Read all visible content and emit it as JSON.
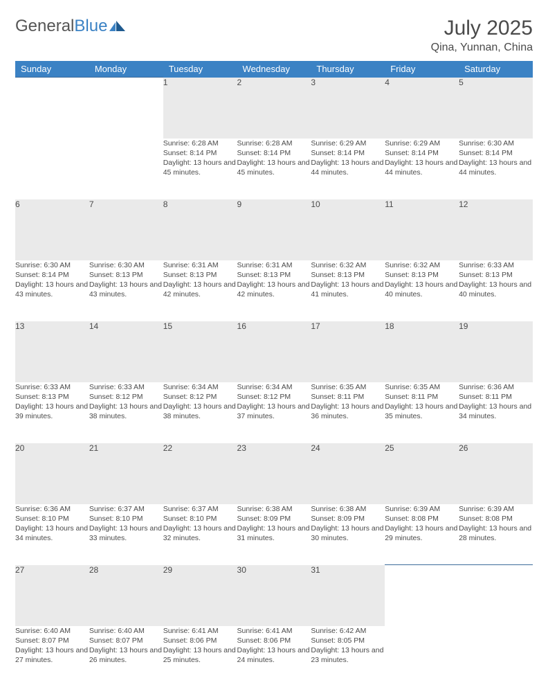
{
  "logo": {
    "text1": "General",
    "text2": "Blue"
  },
  "title": "July 2025",
  "location": "Qina, Yunnan, China",
  "colors": {
    "header_bg": "#3b82c4",
    "header_text": "#ffffff",
    "daynum_bg": "#eaeaea",
    "border": "#3b6a9a",
    "text": "#4a4a4a",
    "logo_gray": "#555555",
    "logo_blue": "#3b82c4"
  },
  "weekdays": [
    "Sunday",
    "Monday",
    "Tuesday",
    "Wednesday",
    "Thursday",
    "Friday",
    "Saturday"
  ],
  "weeks": [
    [
      null,
      null,
      {
        "n": "1",
        "sr": "6:28 AM",
        "ss": "8:14 PM",
        "dl": "13 hours and 45 minutes."
      },
      {
        "n": "2",
        "sr": "6:28 AM",
        "ss": "8:14 PM",
        "dl": "13 hours and 45 minutes."
      },
      {
        "n": "3",
        "sr": "6:29 AM",
        "ss": "8:14 PM",
        "dl": "13 hours and 44 minutes."
      },
      {
        "n": "4",
        "sr": "6:29 AM",
        "ss": "8:14 PM",
        "dl": "13 hours and 44 minutes."
      },
      {
        "n": "5",
        "sr": "6:30 AM",
        "ss": "8:14 PM",
        "dl": "13 hours and 44 minutes."
      }
    ],
    [
      {
        "n": "6",
        "sr": "6:30 AM",
        "ss": "8:14 PM",
        "dl": "13 hours and 43 minutes."
      },
      {
        "n": "7",
        "sr": "6:30 AM",
        "ss": "8:13 PM",
        "dl": "13 hours and 43 minutes."
      },
      {
        "n": "8",
        "sr": "6:31 AM",
        "ss": "8:13 PM",
        "dl": "13 hours and 42 minutes."
      },
      {
        "n": "9",
        "sr": "6:31 AM",
        "ss": "8:13 PM",
        "dl": "13 hours and 42 minutes."
      },
      {
        "n": "10",
        "sr": "6:32 AM",
        "ss": "8:13 PM",
        "dl": "13 hours and 41 minutes."
      },
      {
        "n": "11",
        "sr": "6:32 AM",
        "ss": "8:13 PM",
        "dl": "13 hours and 40 minutes."
      },
      {
        "n": "12",
        "sr": "6:33 AM",
        "ss": "8:13 PM",
        "dl": "13 hours and 40 minutes."
      }
    ],
    [
      {
        "n": "13",
        "sr": "6:33 AM",
        "ss": "8:13 PM",
        "dl": "13 hours and 39 minutes."
      },
      {
        "n": "14",
        "sr": "6:33 AM",
        "ss": "8:12 PM",
        "dl": "13 hours and 38 minutes."
      },
      {
        "n": "15",
        "sr": "6:34 AM",
        "ss": "8:12 PM",
        "dl": "13 hours and 38 minutes."
      },
      {
        "n": "16",
        "sr": "6:34 AM",
        "ss": "8:12 PM",
        "dl": "13 hours and 37 minutes."
      },
      {
        "n": "17",
        "sr": "6:35 AM",
        "ss": "8:11 PM",
        "dl": "13 hours and 36 minutes."
      },
      {
        "n": "18",
        "sr": "6:35 AM",
        "ss": "8:11 PM",
        "dl": "13 hours and 35 minutes."
      },
      {
        "n": "19",
        "sr": "6:36 AM",
        "ss": "8:11 PM",
        "dl": "13 hours and 34 minutes."
      }
    ],
    [
      {
        "n": "20",
        "sr": "6:36 AM",
        "ss": "8:10 PM",
        "dl": "13 hours and 34 minutes."
      },
      {
        "n": "21",
        "sr": "6:37 AM",
        "ss": "8:10 PM",
        "dl": "13 hours and 33 minutes."
      },
      {
        "n": "22",
        "sr": "6:37 AM",
        "ss": "8:10 PM",
        "dl": "13 hours and 32 minutes."
      },
      {
        "n": "23",
        "sr": "6:38 AM",
        "ss": "8:09 PM",
        "dl": "13 hours and 31 minutes."
      },
      {
        "n": "24",
        "sr": "6:38 AM",
        "ss": "8:09 PM",
        "dl": "13 hours and 30 minutes."
      },
      {
        "n": "25",
        "sr": "6:39 AM",
        "ss": "8:08 PM",
        "dl": "13 hours and 29 minutes."
      },
      {
        "n": "26",
        "sr": "6:39 AM",
        "ss": "8:08 PM",
        "dl": "13 hours and 28 minutes."
      }
    ],
    [
      {
        "n": "27",
        "sr": "6:40 AM",
        "ss": "8:07 PM",
        "dl": "13 hours and 27 minutes."
      },
      {
        "n": "28",
        "sr": "6:40 AM",
        "ss": "8:07 PM",
        "dl": "13 hours and 26 minutes."
      },
      {
        "n": "29",
        "sr": "6:41 AM",
        "ss": "8:06 PM",
        "dl": "13 hours and 25 minutes."
      },
      {
        "n": "30",
        "sr": "6:41 AM",
        "ss": "8:06 PM",
        "dl": "13 hours and 24 minutes."
      },
      {
        "n": "31",
        "sr": "6:42 AM",
        "ss": "8:05 PM",
        "dl": "13 hours and 23 minutes."
      },
      null,
      null
    ]
  ],
  "labels": {
    "sunrise": "Sunrise:",
    "sunset": "Sunset:",
    "daylight": "Daylight:"
  }
}
